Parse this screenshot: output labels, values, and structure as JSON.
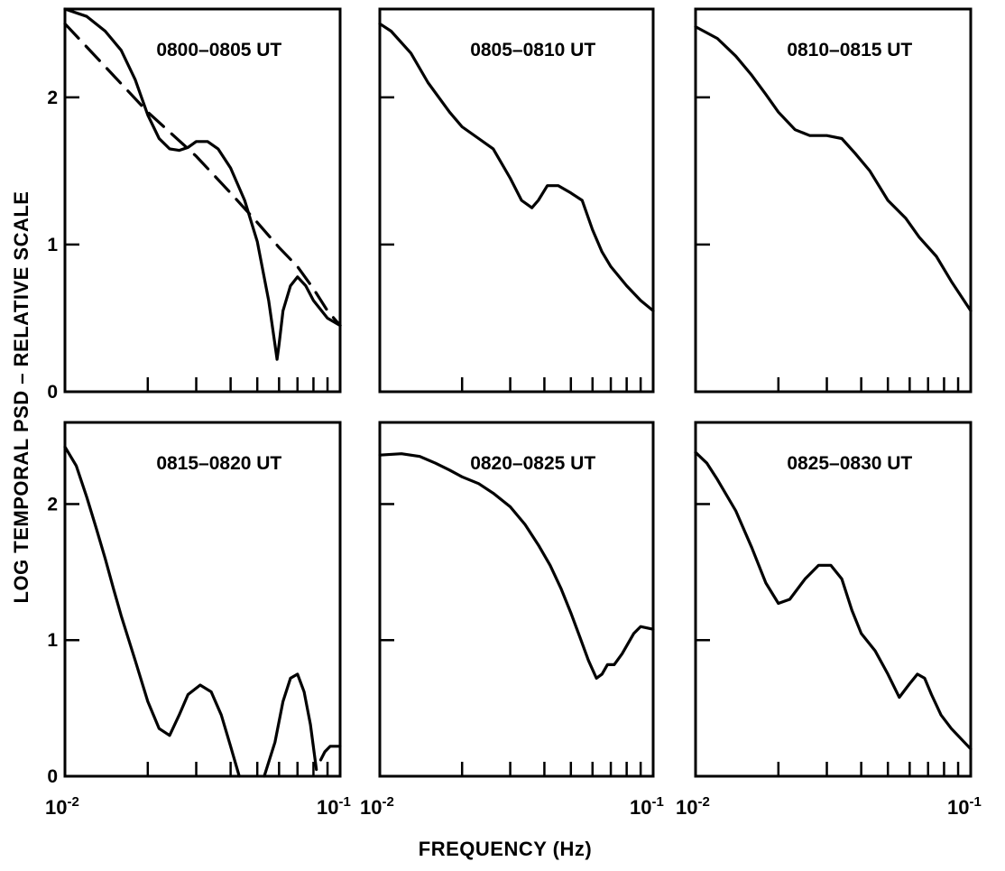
{
  "figure": {
    "ylabel": "LOG TEMPORAL PSD – RELATIVE SCALE",
    "xlabel": "FREQUENCY (Hz)"
  },
  "chart_data": [
    {
      "type": "line",
      "title": "0800–0805 UT",
      "xscale": "log",
      "xlim": [
        0.01,
        0.1
      ],
      "ylim": [
        0,
        2.6
      ],
      "yticks": [
        "0",
        "1",
        "2"
      ],
      "xticks": [
        "10^-2",
        "10^-1"
      ],
      "series": [
        {
          "style": "solid",
          "x": [
            0.01,
            0.012,
            0.014,
            0.016,
            0.018,
            0.02,
            0.022,
            0.024,
            0.026,
            0.028,
            0.03,
            0.033,
            0.036,
            0.04,
            0.045,
            0.05,
            0.055,
            0.058,
            0.059,
            0.06,
            0.062,
            0.066,
            0.07,
            0.075,
            0.08,
            0.09,
            0.1
          ],
          "y": [
            2.6,
            2.55,
            2.45,
            2.32,
            2.12,
            1.88,
            1.72,
            1.65,
            1.64,
            1.66,
            1.7,
            1.7,
            1.65,
            1.52,
            1.3,
            1.02,
            0.62,
            0.32,
            0.22,
            0.32,
            0.55,
            0.72,
            0.78,
            0.72,
            0.62,
            0.5,
            0.45
          ]
        },
        {
          "style": "dashed",
          "x": [
            0.01,
            0.02,
            0.03,
            0.04,
            0.05,
            0.06,
            0.07,
            0.08,
            0.09,
            0.1
          ],
          "y": [
            2.5,
            1.9,
            1.6,
            1.35,
            1.15,
            0.98,
            0.85,
            0.7,
            0.55,
            0.45
          ]
        }
      ]
    },
    {
      "type": "line",
      "title": "0805–0810 UT",
      "xscale": "log",
      "xlim": [
        0.01,
        0.1
      ],
      "ylim": [
        0,
        2.6
      ],
      "yticks": [
        "",
        "",
        ""
      ],
      "xticks": [
        "10^-2",
        "10^-1"
      ],
      "series": [
        {
          "style": "solid",
          "x": [
            0.01,
            0.011,
            0.013,
            0.015,
            0.018,
            0.02,
            0.023,
            0.026,
            0.03,
            0.033,
            0.036,
            0.038,
            0.041,
            0.045,
            0.05,
            0.055,
            0.06,
            0.065,
            0.07,
            0.08,
            0.09,
            0.1
          ],
          "y": [
            2.5,
            2.45,
            2.3,
            2.1,
            1.9,
            1.8,
            1.72,
            1.65,
            1.45,
            1.3,
            1.25,
            1.3,
            1.4,
            1.4,
            1.35,
            1.3,
            1.1,
            0.95,
            0.85,
            0.72,
            0.62,
            0.55
          ]
        }
      ]
    },
    {
      "type": "line",
      "title": "0810–0815 UT",
      "xscale": "log",
      "xlim": [
        0.01,
        0.1
      ],
      "ylim": [
        0,
        2.6
      ],
      "yticks": [
        "",
        "",
        ""
      ],
      "xticks": [
        "10^-2",
        "10^-1"
      ],
      "series": [
        {
          "style": "solid",
          "x": [
            0.01,
            0.012,
            0.014,
            0.016,
            0.018,
            0.02,
            0.023,
            0.026,
            0.03,
            0.034,
            0.038,
            0.043,
            0.05,
            0.058,
            0.065,
            0.075,
            0.085,
            0.1
          ],
          "y": [
            2.48,
            2.4,
            2.28,
            2.15,
            2.02,
            1.9,
            1.78,
            1.74,
            1.74,
            1.72,
            1.62,
            1.5,
            1.3,
            1.18,
            1.05,
            0.92,
            0.75,
            0.55
          ]
        }
      ]
    },
    {
      "type": "line",
      "title": "0815–0820 UT",
      "xscale": "log",
      "xlim": [
        0.01,
        0.1
      ],
      "ylim": [
        0,
        2.6
      ],
      "yticks": [
        "0",
        "1",
        "2"
      ],
      "xticks": [
        "10^-2",
        "10^-1"
      ],
      "series": [
        {
          "style": "solid",
          "x": [
            0.01,
            0.011,
            0.012,
            0.013,
            0.014,
            0.015,
            0.016,
            0.018,
            0.02,
            0.022,
            0.024,
            0.026,
            0.028,
            0.031,
            0.034,
            0.037,
            0.04,
            0.043
          ],
          "y": [
            2.42,
            2.28,
            2.05,
            1.82,
            1.6,
            1.38,
            1.18,
            0.85,
            0.55,
            0.35,
            0.3,
            0.45,
            0.6,
            0.67,
            0.62,
            0.45,
            0.22,
            0.0
          ]
        },
        {
          "style": "solid",
          "x": [
            0.053,
            0.058,
            0.062,
            0.066,
            0.07,
            0.074,
            0.078,
            0.082
          ],
          "y": [
            0.0,
            0.25,
            0.55,
            0.72,
            0.75,
            0.62,
            0.38,
            0.05
          ]
        },
        {
          "style": "solid",
          "x": [
            0.085,
            0.088,
            0.092,
            0.1
          ],
          "y": [
            0.12,
            0.18,
            0.22,
            0.22
          ]
        }
      ]
    },
    {
      "type": "line",
      "title": "0820–0825 UT",
      "xscale": "log",
      "xlim": [
        0.01,
        0.1
      ],
      "ylim": [
        0,
        2.6
      ],
      "yticks": [
        "",
        "",
        ""
      ],
      "xticks": [
        "10^-2",
        "10^-1"
      ],
      "series": [
        {
          "style": "solid",
          "x": [
            0.01,
            0.012,
            0.014,
            0.016,
            0.018,
            0.02,
            0.023,
            0.026,
            0.03,
            0.034,
            0.038,
            0.042,
            0.046,
            0.05,
            0.054,
            0.058,
            0.062,
            0.065,
            0.068,
            0.072,
            0.077,
            0.085,
            0.09,
            0.1
          ],
          "y": [
            2.36,
            2.37,
            2.35,
            2.3,
            2.25,
            2.2,
            2.15,
            2.08,
            1.98,
            1.85,
            1.7,
            1.55,
            1.38,
            1.2,
            1.02,
            0.85,
            0.72,
            0.75,
            0.82,
            0.82,
            0.9,
            1.05,
            1.1,
            1.08
          ]
        }
      ]
    },
    {
      "type": "line",
      "title": "0825–0830 UT",
      "xscale": "log",
      "xlim": [
        0.01,
        0.1
      ],
      "ylim": [
        0,
        2.6
      ],
      "yticks": [
        "",
        "",
        ""
      ],
      "xticks": [
        "10^-2",
        "10^-1"
      ],
      "series": [
        {
          "style": "solid",
          "x": [
            0.01,
            0.011,
            0.012,
            0.014,
            0.016,
            0.018,
            0.02,
            0.022,
            0.025,
            0.028,
            0.031,
            0.034,
            0.037,
            0.04,
            0.045,
            0.05,
            0.055,
            0.06,
            0.064,
            0.068,
            0.072,
            0.078,
            0.085,
            0.1
          ],
          "y": [
            2.38,
            2.3,
            2.18,
            1.95,
            1.68,
            1.42,
            1.27,
            1.3,
            1.45,
            1.55,
            1.55,
            1.45,
            1.22,
            1.05,
            0.92,
            0.75,
            0.58,
            0.68,
            0.75,
            0.72,
            0.6,
            0.45,
            0.35,
            0.2
          ]
        }
      ]
    }
  ]
}
